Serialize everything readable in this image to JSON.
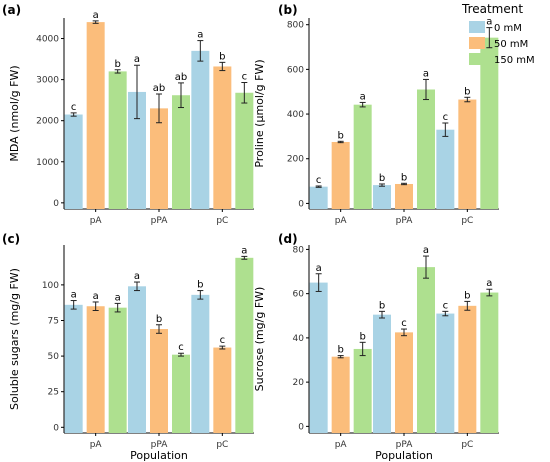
{
  "colors": {
    "0 mM": "#a9d3e5",
    "50 mM": "#fbbd7b",
    "150 mM": "#aee08f",
    "axis": "#000000",
    "errorbar": "#222222"
  },
  "legend": {
    "title": "Treatment",
    "entries": [
      "0 mM",
      "50 mM",
      "150 mM"
    ],
    "placement": "top-right"
  },
  "chart_data": [
    {
      "panel": "(a)",
      "type": "bar",
      "categories": [
        "pA",
        "pPA",
        "pC"
      ],
      "series": [
        {
          "name": "0 mM",
          "values": [
            2150,
            2700,
            3700
          ],
          "errors": [
            40,
            650,
            250
          ],
          "labels": [
            "c",
            "a",
            "a"
          ]
        },
        {
          "name": "50 mM",
          "values": [
            4400,
            2300,
            3320
          ],
          "errors": [
            30,
            350,
            100
          ],
          "labels": [
            "a",
            "ab",
            "b"
          ]
        },
        {
          "name": "150 mM",
          "values": [
            3200,
            2620,
            2680
          ],
          "errors": [
            40,
            300,
            250
          ],
          "labels": [
            "b",
            "ab",
            "c"
          ]
        }
      ],
      "xlabel": "",
      "ylabel": "MDA (nmol/g FW)",
      "ylim": [
        -150,
        4500
      ],
      "yticks": [
        0,
        1000,
        2000,
        3000,
        4000
      ]
    },
    {
      "panel": "(b)",
      "type": "bar",
      "categories": [
        "pA",
        "pPA",
        "pC"
      ],
      "series": [
        {
          "name": "0 mM",
          "values": [
            75,
            82,
            330
          ],
          "errors": [
            3,
            5,
            30
          ],
          "labels": [
            "c",
            "b",
            "c"
          ]
        },
        {
          "name": "50 mM",
          "values": [
            275,
            87,
            465
          ],
          "errors": [
            3,
            3,
            10
          ],
          "labels": [
            "b",
            "b",
            "b"
          ]
        },
        {
          "name": "150 mM",
          "values": [
            442,
            510,
            742
          ],
          "errors": [
            10,
            45,
            45
          ],
          "labels": [
            "a",
            "a",
            "a"
          ]
        }
      ],
      "xlabel": "",
      "ylabel": "Proline (µmol/g FW)",
      "ylim": [
        -25,
        830
      ],
      "yticks": [
        0,
        200,
        400,
        600,
        800
      ]
    },
    {
      "panel": "(c)",
      "type": "bar",
      "categories": [
        "pA",
        "pPA",
        "pC"
      ],
      "series": [
        {
          "name": "0 mM",
          "values": [
            86,
            99,
            93
          ],
          "errors": [
            3,
            3,
            3
          ],
          "labels": [
            "a",
            "a",
            "b"
          ]
        },
        {
          "name": "50 mM",
          "values": [
            85,
            69,
            56
          ],
          "errors": [
            3,
            3,
            1
          ],
          "labels": [
            "a",
            "b",
            "c"
          ]
        },
        {
          "name": "150 mM",
          "values": [
            84,
            51,
            119
          ],
          "errors": [
            3,
            1,
            1
          ],
          "labels": [
            "a",
            "c",
            "a"
          ]
        }
      ],
      "xlabel": "Population",
      "ylabel": "Soluble sugars (mg/g FW)",
      "ylim": [
        -4,
        128
      ],
      "yticks": [
        0,
        25,
        50,
        75,
        100
      ]
    },
    {
      "panel": "(d)",
      "type": "bar",
      "categories": [
        "pA",
        "pPA",
        "pC"
      ],
      "series": [
        {
          "name": "0 mM",
          "values": [
            65,
            50.5,
            51
          ],
          "errors": [
            4,
            1.5,
            1
          ],
          "labels": [
            "a",
            "b",
            "c"
          ]
        },
        {
          "name": "50 mM",
          "values": [
            31.5,
            42.5,
            54.5
          ],
          "errors": [
            0.5,
            1.5,
            2
          ],
          "labels": [
            "b",
            "c",
            "b"
          ]
        },
        {
          "name": "150 mM",
          "values": [
            35,
            72,
            60.5
          ],
          "errors": [
            3,
            5,
            1.5
          ],
          "labels": [
            "b",
            "a",
            "a"
          ]
        }
      ],
      "xlabel": "Population",
      "ylabel": "Sucrose (mg/g FW)",
      "ylim": [
        -3,
        82
      ],
      "yticks": [
        0,
        20,
        40,
        60,
        80
      ]
    }
  ]
}
